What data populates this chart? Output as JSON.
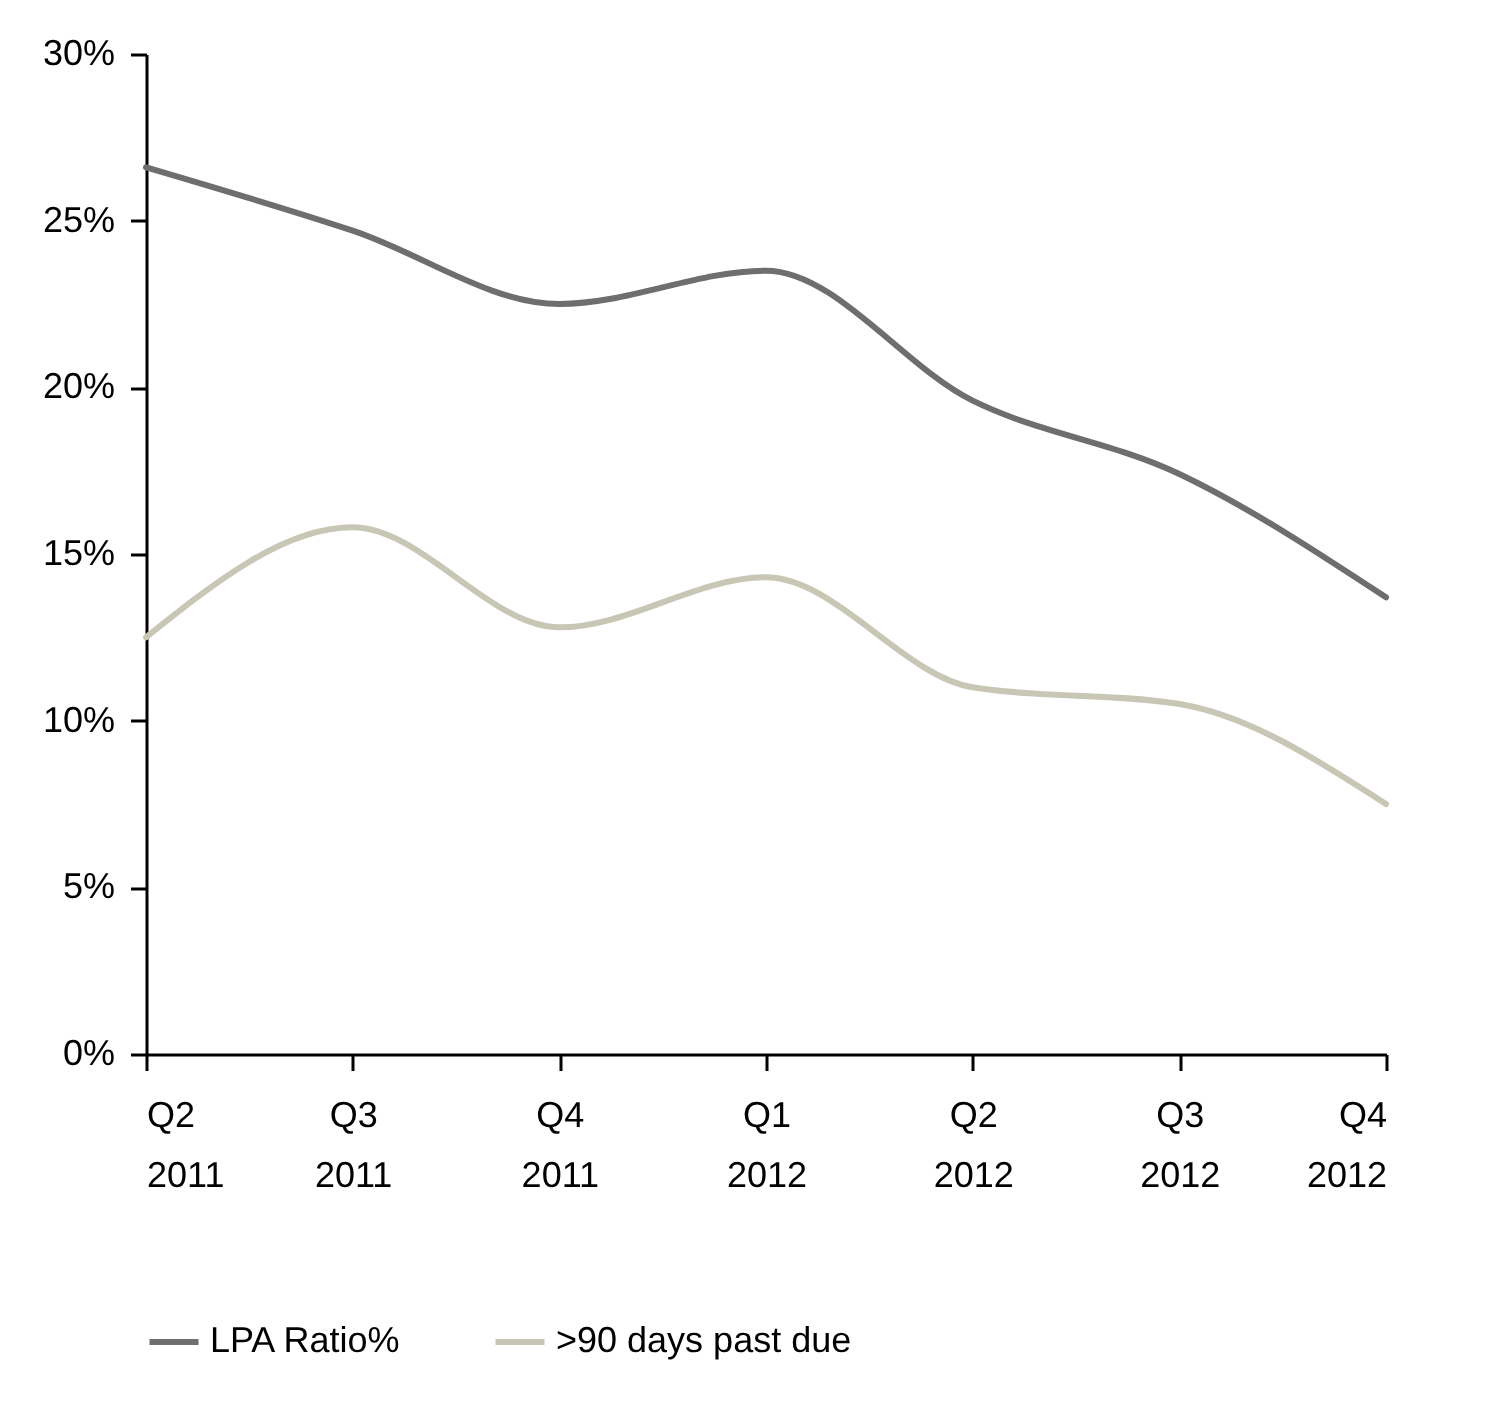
{
  "chart_data": {
    "type": "line",
    "categories": [
      "Q2 2011",
      "Q3 2011",
      "Q4 2011",
      "Q1 2012",
      "Q2 2012",
      "Q3 2012",
      "Q4 2012"
    ],
    "series": [
      {
        "name": "LPA Ratio%",
        "color": "#6d6e70",
        "values": [
          26.6,
          24.7,
          22.5,
          23.5,
          19.6,
          17.4,
          13.7
        ]
      },
      {
        "name": ">90 days past due",
        "color": "#c8c6b4",
        "values": [
          12.5,
          15.8,
          12.8,
          14.3,
          11.0,
          10.5,
          7.5
        ]
      }
    ],
    "ylim": [
      0,
      30
    ],
    "yticks": [
      {
        "value": 0,
        "label": "0%"
      },
      {
        "value": 5,
        "label": "5%"
      },
      {
        "value": 10,
        "label": "10%"
      },
      {
        "value": 15,
        "label": "15%"
      },
      {
        "value": 20,
        "label": "20%"
      },
      {
        "value": 25,
        "label": "25%"
      },
      {
        "value": 30,
        "label": "30%"
      }
    ],
    "grid": false,
    "legend": "bottom",
    "marker": "none",
    "line_style": "solid"
  }
}
